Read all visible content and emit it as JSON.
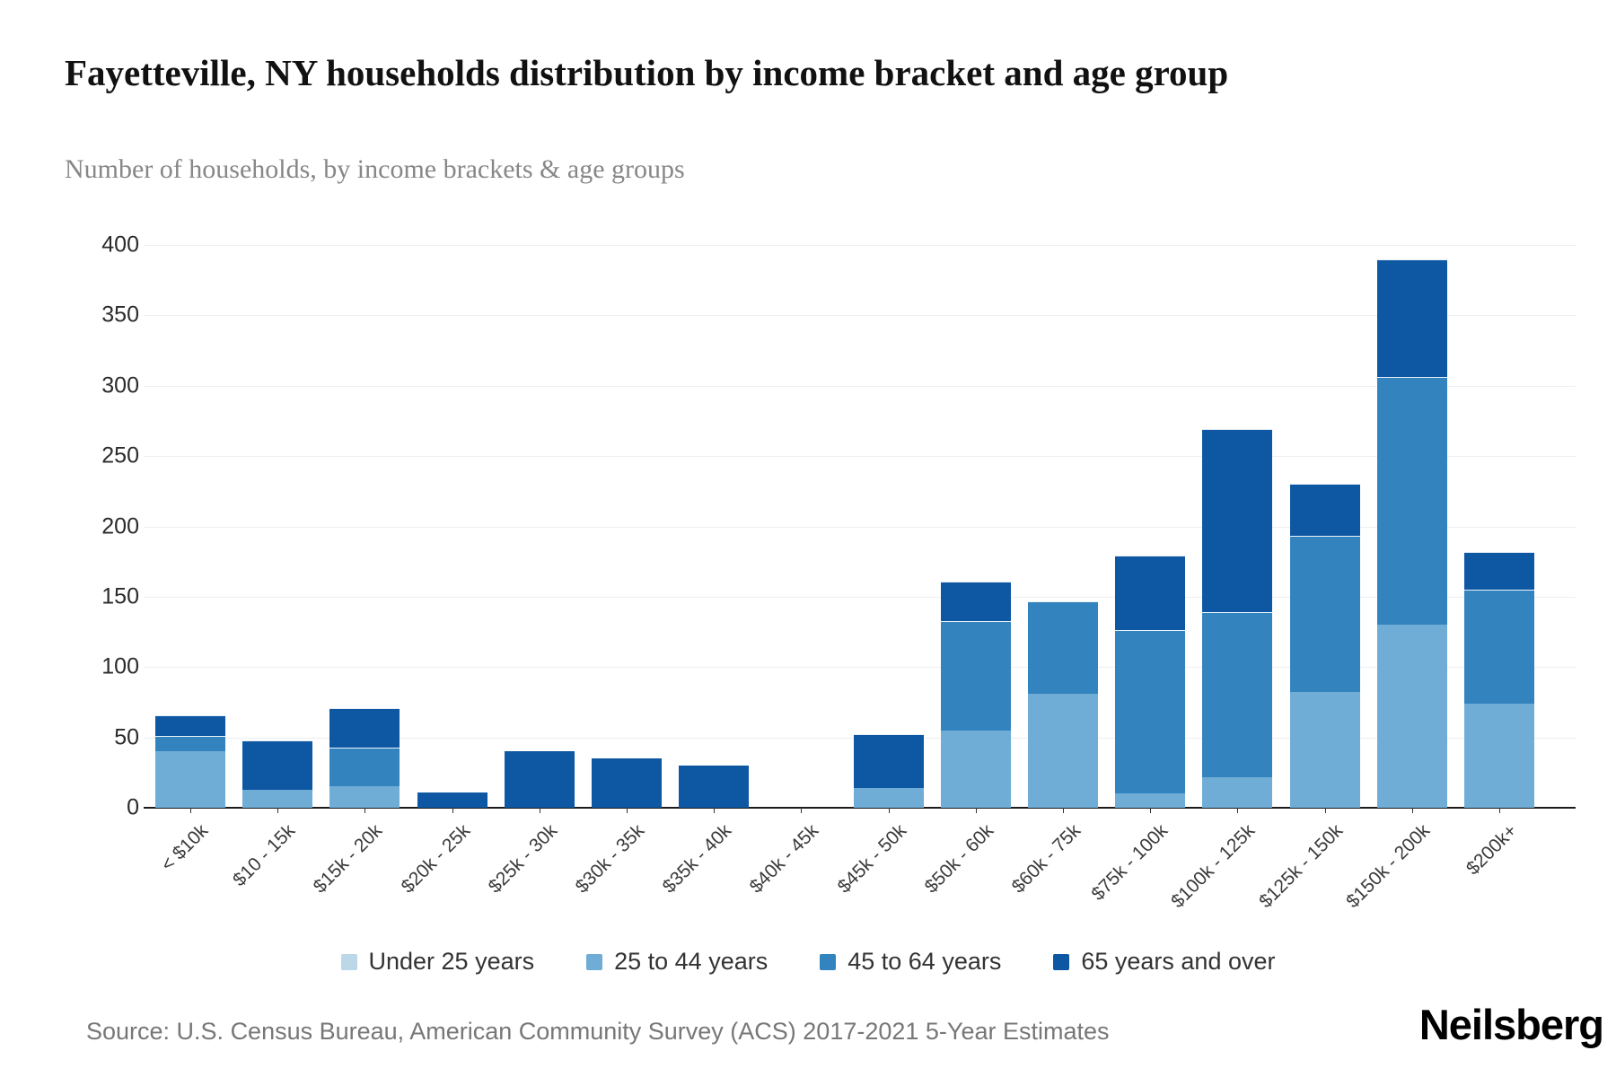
{
  "header": {
    "title": "Fayetteville, NY households distribution by income bracket and age group",
    "subtitle": "Number of households, by income brackets & age groups"
  },
  "footer": {
    "source": "Source: U.S. Census Bureau, American Community Survey (ACS) 2017-2021 5-Year Estimates",
    "brand": "Neilsberg"
  },
  "chart_data": {
    "type": "bar",
    "stacked": true,
    "title": "Fayetteville, NY households distribution by income bracket and age group",
    "xlabel": "",
    "ylabel": "Number of households",
    "ylim": [
      0,
      400
    ],
    "ytick_interval": 50,
    "grid": true,
    "legend_position": "bottom",
    "categories": [
      "< $10k",
      "$10 - 15k",
      "$15k - 20k",
      "$20k - 25k",
      "$25k - 30k",
      "$30k - 35k",
      "$35k - 40k",
      "$40k - 45k",
      "$45k - 50k",
      "$50k - 60k",
      "$60k - 75k",
      "$75k - 100k",
      "$100k - 125k",
      "$125k - 150k",
      "$150k - 200k",
      "$200k+"
    ],
    "series": [
      {
        "name": "Under 25 years",
        "color": "#bcd7e8",
        "values": [
          0,
          0,
          0,
          0,
          0,
          0,
          0,
          0,
          0,
          0,
          0,
          0,
          0,
          0,
          0,
          0
        ]
      },
      {
        "name": "25 to 44 years",
        "color": "#6fadd6",
        "values": [
          40,
          13,
          15,
          0,
          0,
          0,
          0,
          0,
          14,
          55,
          81,
          10,
          22,
          82,
          130,
          74
        ]
      },
      {
        "name": "45 to 64 years",
        "color": "#3383bf",
        "values": [
          11,
          0,
          28,
          0,
          0,
          0,
          0,
          0,
          0,
          78,
          66,
          116,
          117,
          111,
          176,
          81
        ]
      },
      {
        "name": "65 years and over",
        "color": "#0d57a3",
        "values": [
          15,
          35,
          28,
          11,
          40,
          35,
          30,
          0,
          38,
          28,
          0,
          53,
          130,
          37,
          84,
          27
        ]
      }
    ]
  }
}
